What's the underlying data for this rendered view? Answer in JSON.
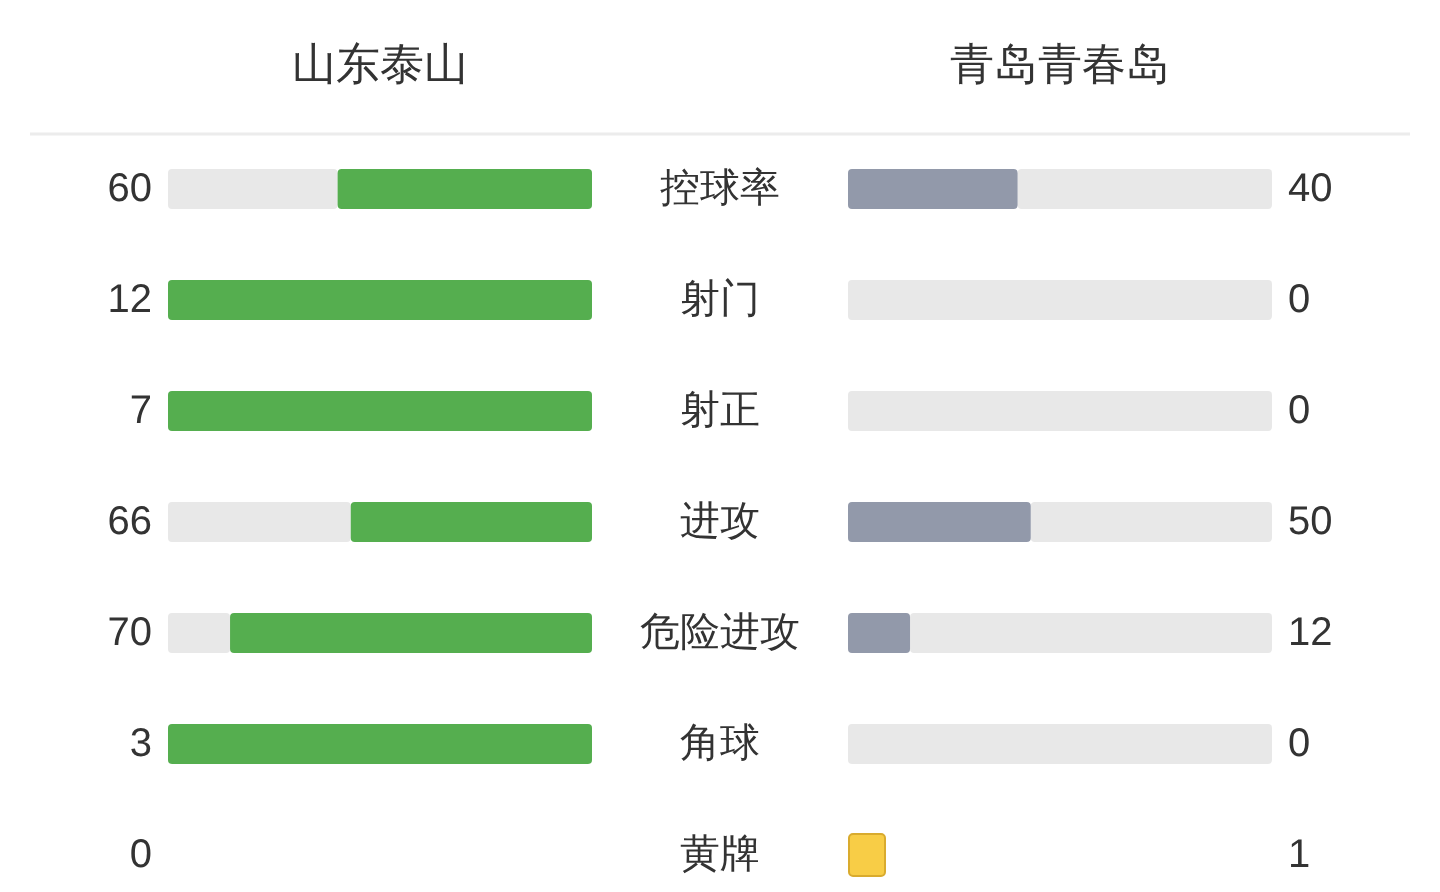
{
  "chart_data": [
    {
      "type": "other",
      "annotations": [
        "山东泰山",
        "青岛青春岛"
      ],
      "categories": [
        "控球率",
        "射门",
        "射正",
        "进攻",
        "危险进攻",
        "角球"
      ],
      "data_labels": true,
      "series": [
        {
          "color": "#55ae4f",
          "values": [
            60,
            12,
            7,
            66,
            70,
            3
          ]
        },
        {
          "color": "#9299aa",
          "values": [
            40,
            0,
            0,
            50,
            12,
            0
          ]
        }
      ]
    },
    {
      "type": "other",
      "categories": [
        "黄牌"
      ],
      "data_labels": true,
      "series": [
        {
          "type": "bar",
          "values": [
            0
          ]
        },
        {
          "type": "bar",
          "color": "#f8cd46",
          "values": [
            1
          ]
        }
      ]
    }
  ]
}
